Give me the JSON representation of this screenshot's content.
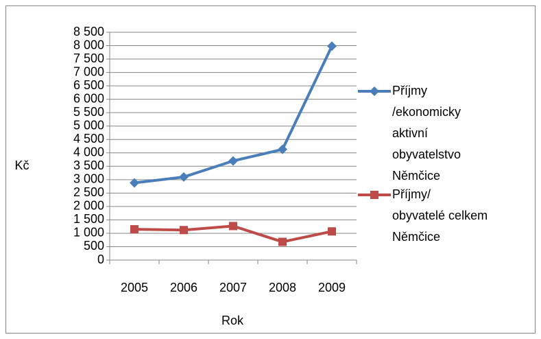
{
  "chart_data": {
    "type": "line",
    "categories": [
      "2005",
      "2006",
      "2007",
      "2008",
      "2009"
    ],
    "series": [
      {
        "name": "Příjmy\n/ekonomicky\naktivní\nobyvatelstvo\nNěmčice",
        "color": "#4a7ebb",
        "marker": "diamond",
        "values": [
          2880,
          3100,
          3700,
          4130,
          7980
        ]
      },
      {
        "name": "Příjmy/\nobyvatelé celkem\nNěmčice",
        "color": "#be4b48",
        "marker": "square",
        "values": [
          1150,
          1120,
          1270,
          680,
          1070
        ]
      }
    ],
    "ylim": [
      0,
      8500
    ],
    "yticks": [
      0,
      500,
      {
        "value": 1000,
        "label": "1 000"
      },
      {
        "value": 1500,
        "label": "1 500"
      },
      {
        "value": 2000,
        "label": "2 000"
      },
      {
        "value": 2500,
        "label": "2 500"
      },
      {
        "value": 3000,
        "label": "3 000"
      },
      {
        "value": 3500,
        "label": "3 500"
      },
      {
        "value": 4000,
        "label": "4 000"
      },
      {
        "value": 4500,
        "label": "4 500"
      },
      {
        "value": 5000,
        "label": "5 000"
      },
      {
        "value": 5500,
        "label": "5 500"
      },
      {
        "value": 6000,
        "label": "6 000"
      },
      {
        "value": 6500,
        "label": "6 500"
      },
      {
        "value": 7000,
        "label": "7 000"
      },
      {
        "value": 7500,
        "label": "7 500"
      },
      {
        "value": 8000,
        "label": "8 000"
      },
      {
        "value": 8500,
        "label": "8 500"
      }
    ],
    "grid": true,
    "xlabel": "Rok",
    "ylabel": "Kč",
    "legend": "right"
  }
}
